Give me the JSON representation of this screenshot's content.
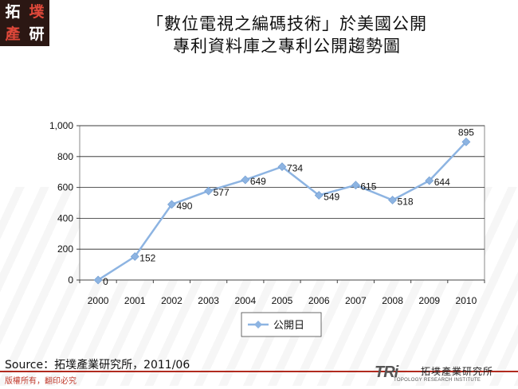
{
  "logo": {
    "chars": [
      "拓",
      "墣",
      "產",
      "研"
    ]
  },
  "header": {
    "title_line1": "「數位電視之編碼技術」於美國公開",
    "title_line2": "專利資料庫之專利公開趨勢圖"
  },
  "chart_data": {
    "type": "line",
    "categories": [
      "2000",
      "2001",
      "2002",
      "2003",
      "2004",
      "2005",
      "2006",
      "2007",
      "2008",
      "2009",
      "2010"
    ],
    "series": [
      {
        "name": "公開日",
        "values": [
          0,
          152,
          490,
          577,
          649,
          734,
          549,
          615,
          518,
          644,
          895
        ],
        "color": "#8db4e2"
      }
    ],
    "data_labels": [
      "0",
      "152",
      "490",
      "577",
      "649",
      "734",
      "549",
      "615",
      "518",
      "644",
      "895"
    ],
    "ylim": [
      0,
      1000
    ],
    "yticks": [
      0,
      200,
      400,
      600,
      800,
      1000
    ],
    "ytick_labels": [
      "0",
      "200",
      "400",
      "600",
      "800",
      "1,000"
    ],
    "grid": true,
    "legend": "bottom"
  },
  "footer": {
    "source": "Source：拓墣產業研究所，2011/06",
    "copyright": "版權所有，翻印必究",
    "org_logo": "TRi",
    "org_name": "拓墣產業研究所",
    "org_name_en": "TOPOLOGY RESEARCH INSTITUTE"
  }
}
